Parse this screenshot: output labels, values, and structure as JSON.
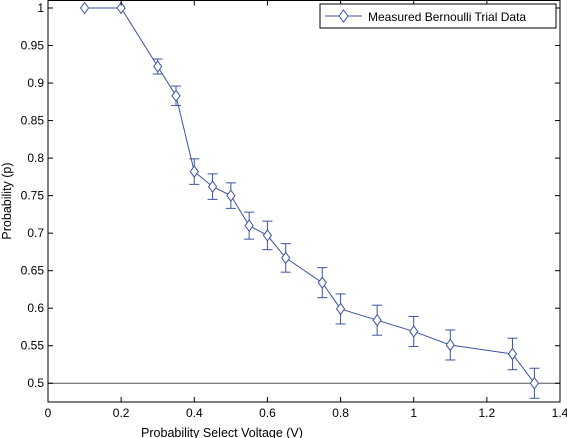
{
  "chart_data": {
    "type": "line",
    "xlabel": "Probability Select Voltage (V)",
    "ylabel": "Probability (p)",
    "xlim": [
      0,
      1.4
    ],
    "ylim": [
      0.475,
      1.01
    ],
    "xticks": [
      0,
      0.2,
      0.4,
      0.6,
      0.8,
      1,
      1.2,
      1.4
    ],
    "xtick_labels": [
      "0",
      "0.2",
      "0.4",
      "0.6",
      "0.8",
      "1",
      "1.2",
      "1.4"
    ],
    "yticks": [
      0.5,
      0.55,
      0.6,
      0.65,
      0.7,
      0.75,
      0.8,
      0.85,
      0.9,
      0.95,
      1
    ],
    "ytick_labels": [
      "0.5",
      "0.55",
      "0.6",
      "0.65",
      "0.7",
      "0.75",
      "0.8",
      "0.85",
      "0.9",
      "0.95",
      "1"
    ],
    "reference_line_y": 0.5,
    "grid": false,
    "legend_position": "top-right",
    "series_color": "#3d52a1",
    "series": [
      {
        "name": "Measured Bernoulli Trial Data",
        "marker": "diamond",
        "x": [
          0.1,
          0.2,
          0.3,
          0.35,
          0.4,
          0.45,
          0.5,
          0.55,
          0.6,
          0.65,
          0.75,
          0.8,
          0.9,
          1.0,
          1.1,
          1.27,
          1.33
        ],
        "y": [
          1.0,
          1.0,
          0.922,
          0.883,
          0.782,
          0.762,
          0.75,
          0.71,
          0.697,
          0.667,
          0.634,
          0.599,
          0.584,
          0.569,
          0.551,
          0.539,
          0.5
        ],
        "error": [
          0,
          0,
          0.01,
          0.013,
          0.017,
          0.017,
          0.017,
          0.018,
          0.019,
          0.019,
          0.02,
          0.02,
          0.02,
          0.02,
          0.02,
          0.021,
          0.02
        ]
      }
    ]
  }
}
